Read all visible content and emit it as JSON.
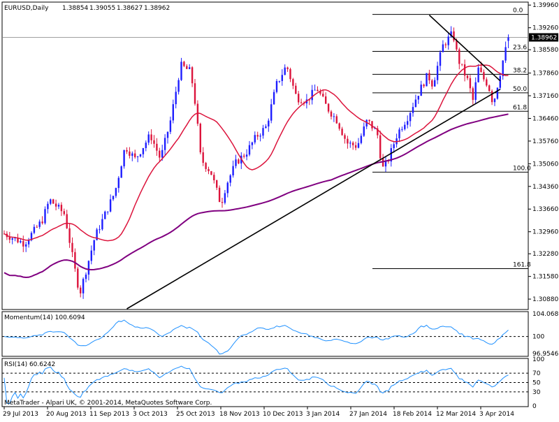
{
  "chart_data": {
    "type": "candlestick",
    "header": {
      "symbol": "EURUSD,Daily",
      "open": "1.38854",
      "high": "1.39055",
      "low": "1.38627",
      "close": "1.38962"
    },
    "price_axis": {
      "ticks": [
        "1.39960",
        "1.39260",
        "1.38580",
        "1.37860",
        "1.37160",
        "1.36460",
        "1.35760",
        "1.35060",
        "1.34360",
        "1.33660",
        "1.32960",
        "1.32280",
        "1.31580",
        "1.30880"
      ],
      "current_price": "1.38962",
      "ylim": [
        1.3058,
        1.4003
      ]
    },
    "date_axis": [
      "29 Jul 2013",
      "20 Aug 2013",
      "11 Sep 2013",
      "3 Oct 2013",
      "25 Oct 2013",
      "18 Nov 2013",
      "10 Dec 2013",
      "3 Jan 2014",
      "27 Jan 2014",
      "18 Feb 2014",
      "12 Mar 2014",
      "3 Apr 2014"
    ],
    "moving_averages": [
      {
        "color": "#dc143c",
        "description": "short-period moving average"
      },
      {
        "color": "#800080",
        "description": "long-period moving average"
      }
    ],
    "fibonacci": {
      "levels": [
        {
          "label": "0.0",
          "price": 1.3967
        },
        {
          "label": "23.6",
          "price": 1.3853
        },
        {
          "label": "38.2",
          "price": 1.3782
        },
        {
          "label": "50.0",
          "price": 1.3725
        },
        {
          "label": "61.8",
          "price": 1.3668
        },
        {
          "label": "100.0",
          "price": 1.348
        },
        {
          "label": "161.8",
          "price": 1.3182
        }
      ]
    },
    "trendlines": [
      {
        "description": "rising support",
        "from": {
          "date_index": 45,
          "price": 1.3058
        },
        "to": {
          "date_index": 182,
          "price": 1.3736
        }
      },
      {
        "description": "falling resistance",
        "from": {
          "date_index": 156,
          "price": 1.3965
        },
        "to": {
          "date_index": 182,
          "price": 1.3762
        }
      }
    ],
    "momentum": {
      "label": "Momentum(14) 100.6094",
      "ticks": [
        "104.0689",
        "100",
        "96.9546"
      ],
      "reference_level": 100,
      "ylim": [
        96.6,
        104.3
      ]
    },
    "rsi": {
      "label": "RSI(14) 60.6242",
      "ticks": [
        "100",
        "70",
        "50",
        "30",
        "0"
      ],
      "levels": [
        70,
        50,
        30
      ],
      "ylim": [
        0,
        100
      ]
    },
    "copyright": "MetaTrader - Alpari UK, © 2001-2014, MetaQuotes Software Corp.",
    "colors": {
      "bull": "#1e1eff",
      "bear": "#dc143c",
      "grid": "#000000",
      "ma_fast": "#dc143c",
      "ma_slow": "#800080",
      "indicator": "#1e90ff"
    }
  }
}
